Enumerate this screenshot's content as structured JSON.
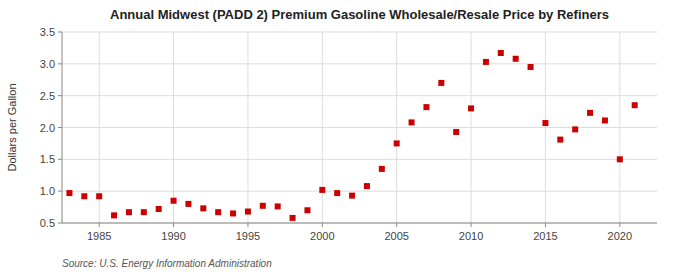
{
  "chart_data": {
    "type": "scatter",
    "title": "Annual Midwest (PADD 2) Premium Gasoline Wholesale/Resale Price by Refiners",
    "y_label": "Dollars per Gallon",
    "annotations": [
      "Source: U.S. Energy Information Administration"
    ],
    "x": [
      1983,
      1984,
      1985,
      1986,
      1987,
      1988,
      1989,
      1990,
      1991,
      1992,
      1993,
      1994,
      1995,
      1996,
      1997,
      1998,
      1999,
      2000,
      2001,
      2002,
      2003,
      2004,
      2005,
      2006,
      2007,
      2008,
      2009,
      2010,
      2011,
      2012,
      2013,
      2014,
      2015,
      2016,
      2017,
      2018,
      2019,
      2020,
      2021
    ],
    "values": [
      0.97,
      0.92,
      0.92,
      0.62,
      0.67,
      0.67,
      0.72,
      0.85,
      0.8,
      0.73,
      0.67,
      0.65,
      0.68,
      0.77,
      0.76,
      0.58,
      0.7,
      1.02,
      0.97,
      0.93,
      1.08,
      1.35,
      1.75,
      2.08,
      2.32,
      2.7,
      1.93,
      2.3,
      3.03,
      3.17,
      3.08,
      2.95,
      2.07,
      1.81,
      1.97,
      2.23,
      2.11,
      1.5,
      2.35
    ],
    "color": "#cc0000",
    "marker": "square",
    "xlim": [
      1982.5,
      2022.5
    ],
    "ylim": [
      0.5,
      3.5
    ],
    "xticks": [
      1985,
      1990,
      1995,
      2000,
      2005,
      2010,
      2015,
      2020
    ],
    "yticks": [
      0.5,
      {
        "value": 1,
        "label": "1.0"
      },
      1.5,
      {
        "value": 2,
        "label": "2.0"
      },
      2.5,
      {
        "value": 3,
        "label": "3.0"
      },
      3.5
    ],
    "grid": true
  }
}
